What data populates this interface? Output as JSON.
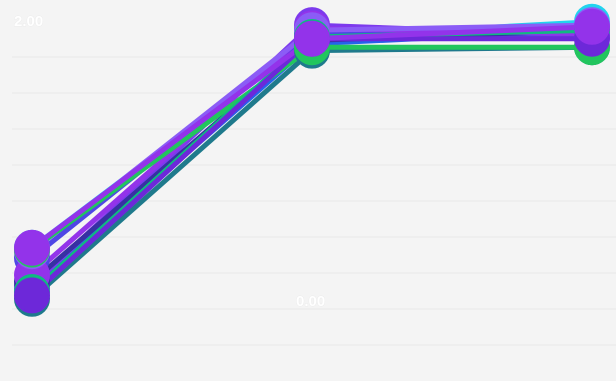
{
  "chart_data": {
    "type": "line",
    "x": [
      0,
      1,
      2
    ],
    "ylim": [
      -8.5,
      1.5
    ],
    "grid": true,
    "legend": "none",
    "annotations": [
      "2.00",
      "0.00"
    ],
    "series": [
      {
        "color": "#1f7a8c",
        "values": [
          -6.7,
          0.6,
          0.7
        ]
      },
      {
        "color": "#2563eb",
        "values": [
          -6.4,
          0.8,
          1.2
        ]
      },
      {
        "color": "#22d3ee",
        "values": [
          -5.2,
          1.0,
          1.45
        ]
      },
      {
        "color": "#4f46e5",
        "values": [
          -5.5,
          1.1,
          1.0
        ]
      },
      {
        "color": "#7c3aed",
        "values": [
          -6.3,
          1.35,
          1.05
        ]
      },
      {
        "color": "#3730a3",
        "values": [
          -6.2,
          0.9,
          1.2
        ]
      },
      {
        "color": "#9333ea",
        "values": [
          -6.0,
          1.25,
          1.1
        ]
      },
      {
        "color": "#8b5cf6",
        "values": [
          -5.3,
          1.2,
          1.35
        ]
      },
      {
        "color": "#22c55e",
        "values": [
          -5.25,
          0.7,
          0.7
        ]
      },
      {
        "color": "#10b981",
        "values": [
          -6.5,
          1.0,
          1.2
        ]
      },
      {
        "color": "#6d28d9",
        "values": [
          -6.6,
          0.95,
          0.95
        ]
      },
      {
        "color": "#9333ea",
        "values": [
          -5.2,
          0.95,
          1.3
        ]
      }
    ]
  }
}
